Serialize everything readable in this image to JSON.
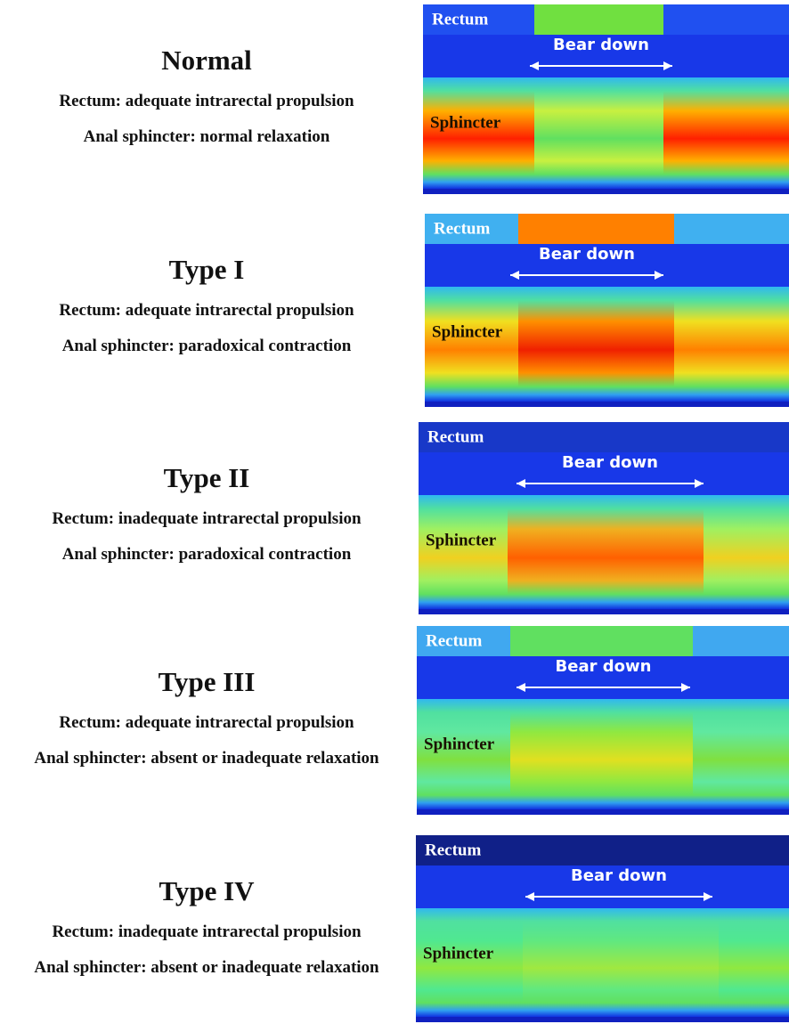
{
  "panels": [
    {
      "title": "Normal",
      "rectum": "Rectum: adequate intrarectal propulsion",
      "sphincter": "Anal sphincter: normal relaxation",
      "image": {
        "rectum_label": "Rectum",
        "bear_down": "Bear down",
        "sphincter_label": "Sphincter"
      }
    },
    {
      "title": "Type I",
      "rectum": "Rectum: adequate intrarectal propulsion",
      "sphincter": "Anal sphincter: paradoxical contraction",
      "image": {
        "rectum_label": "Rectum",
        "bear_down": "Bear down",
        "sphincter_label": "Sphincter"
      }
    },
    {
      "title": "Type II",
      "rectum": "Rectum: inadequate intrarectal propulsion",
      "sphincter": "Anal sphincter: paradoxical contraction",
      "image": {
        "rectum_label": "Rectum",
        "bear_down": "Bear down",
        "sphincter_label": "Sphincter"
      }
    },
    {
      "title": "Type III",
      "rectum": "Rectum: adequate intrarectal propulsion",
      "sphincter": "Anal sphincter: absent or inadequate relaxation",
      "image": {
        "rectum_label": "Rectum",
        "bear_down": "Bear down",
        "sphincter_label": "Sphincter"
      }
    },
    {
      "title": "Type IV",
      "rectum": "Rectum: inadequate intrarectal propulsion",
      "sphincter": "Anal sphincter: absent or inadequate relaxation",
      "image": {
        "rectum_label": "Rectum",
        "bear_down": "Bear down",
        "sphincter_label": "Sphincter"
      }
    }
  ]
}
